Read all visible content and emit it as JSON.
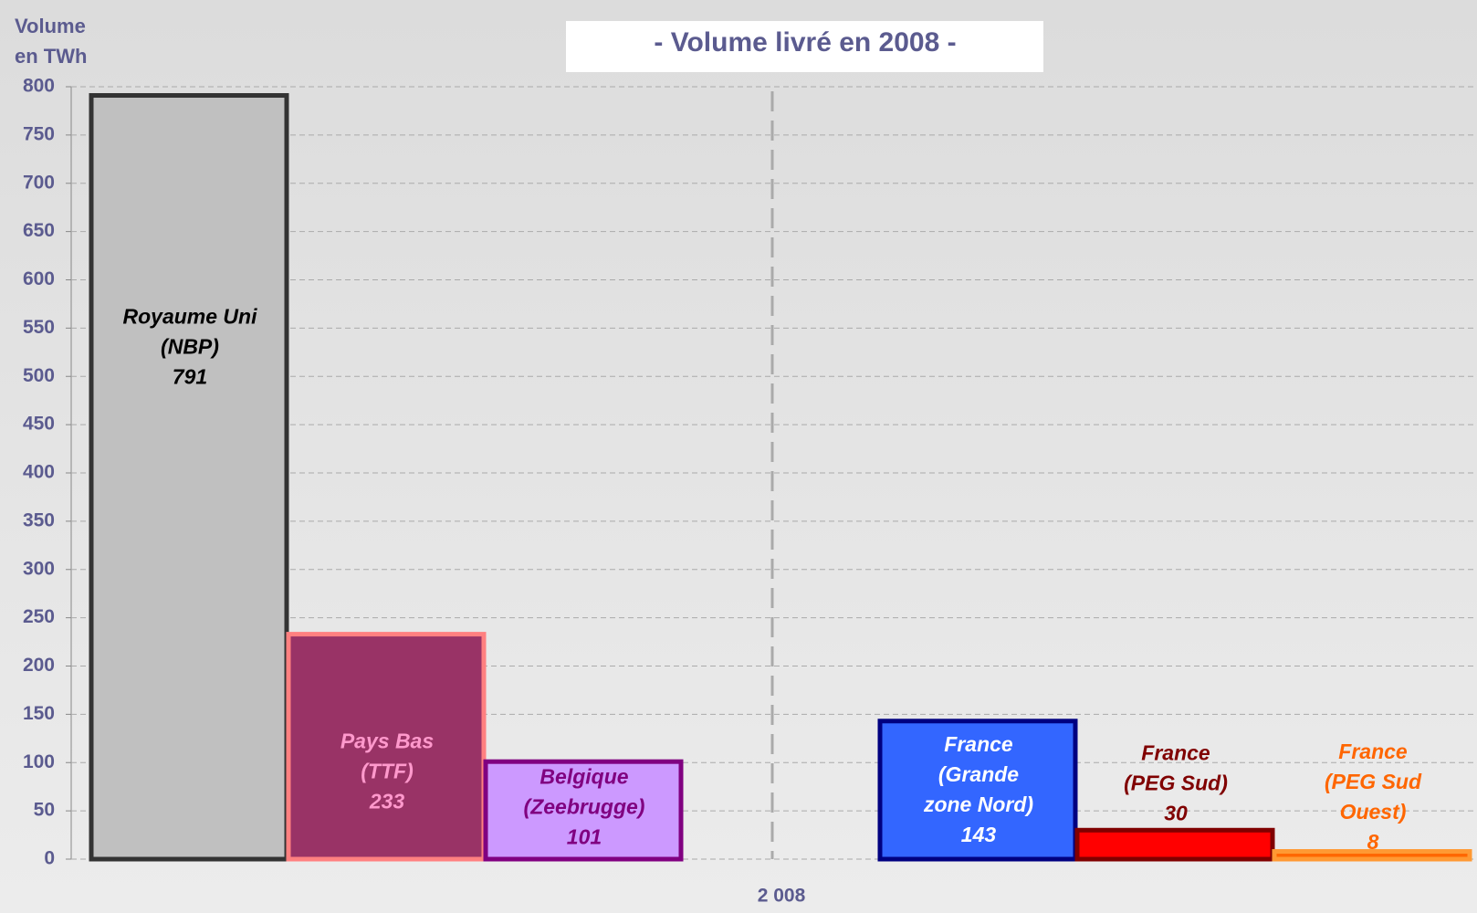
{
  "chart_data": {
    "type": "bar",
    "title": "- Volume livré en 2008 -",
    "y_axis_label": "Volume\nen TWh",
    "x_axis_label": "2 008",
    "categories": [
      "Royaume Uni\n(NBP)",
      "Pays Bas\n(TTF)",
      "Belgique\n(Zeebrugge)",
      "France\n(Grande\nzone Nord)",
      "France\n(PEG Sud)",
      "France\n(PEG Sud Ouest)"
    ],
    "values": [
      791,
      233,
      101,
      143,
      30,
      8
    ],
    "colors": [
      "#c0c0c0",
      "#993366",
      "#cc99ff",
      "#3366ff",
      "#ff0000",
      "#ff6600"
    ],
    "border_colors": [
      "#333333",
      "#ff8080",
      "#800080",
      "#000080",
      "#800000",
      "#ff9933"
    ],
    "label_colors": [
      "#000000",
      "#ff99cc",
      "#800080",
      "#ffffff",
      "#800000",
      "#ff6600"
    ],
    "ylim": [
      0,
      800
    ],
    "yticks": [
      0,
      50,
      100,
      150,
      200,
      250,
      300,
      350,
      400,
      450,
      500,
      550,
      600,
      650,
      700,
      750,
      800
    ],
    "grid": true
  }
}
